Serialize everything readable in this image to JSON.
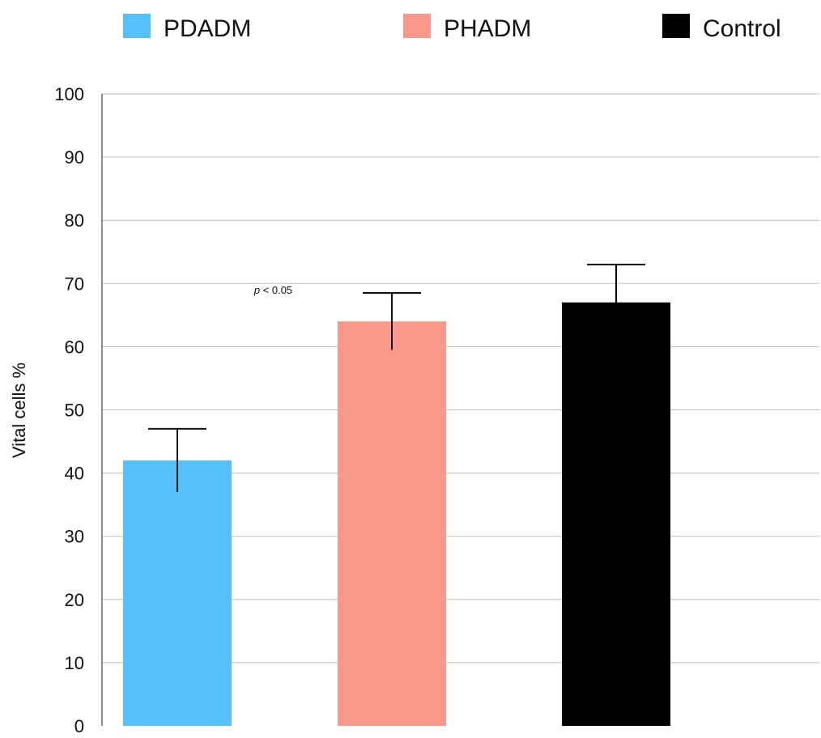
{
  "chart_data": {
    "type": "bar",
    "title": "",
    "xlabel": "",
    "ylabel": "Vital cells %",
    "categories": [
      "PDADM",
      "PHADM",
      "Control"
    ],
    "values": [
      42,
      64,
      67
    ],
    "errors": [
      5,
      4.5,
      6
    ],
    "colors": [
      "#55c0fb",
      "#fa988c",
      "#000000"
    ],
    "ylim": [
      0,
      100
    ],
    "yticks": [
      "0",
      "10",
      "20",
      "30",
      "40",
      "50",
      "60",
      "70",
      "80",
      "90",
      "100"
    ],
    "grid": true,
    "legend": {
      "position": "top",
      "entries": [
        {
          "label": "PDADM",
          "color": "#55c0fb"
        },
        {
          "label": "PHADM",
          "color": "#fa988c"
        },
        {
          "label": "Control",
          "color": "#000000"
        }
      ]
    },
    "annotations": [
      {
        "text": "p < 0.05",
        "italic_part": "p",
        "x_category": "PDADM",
        "x_offset": 0.5,
        "y": 69
      }
    ]
  }
}
